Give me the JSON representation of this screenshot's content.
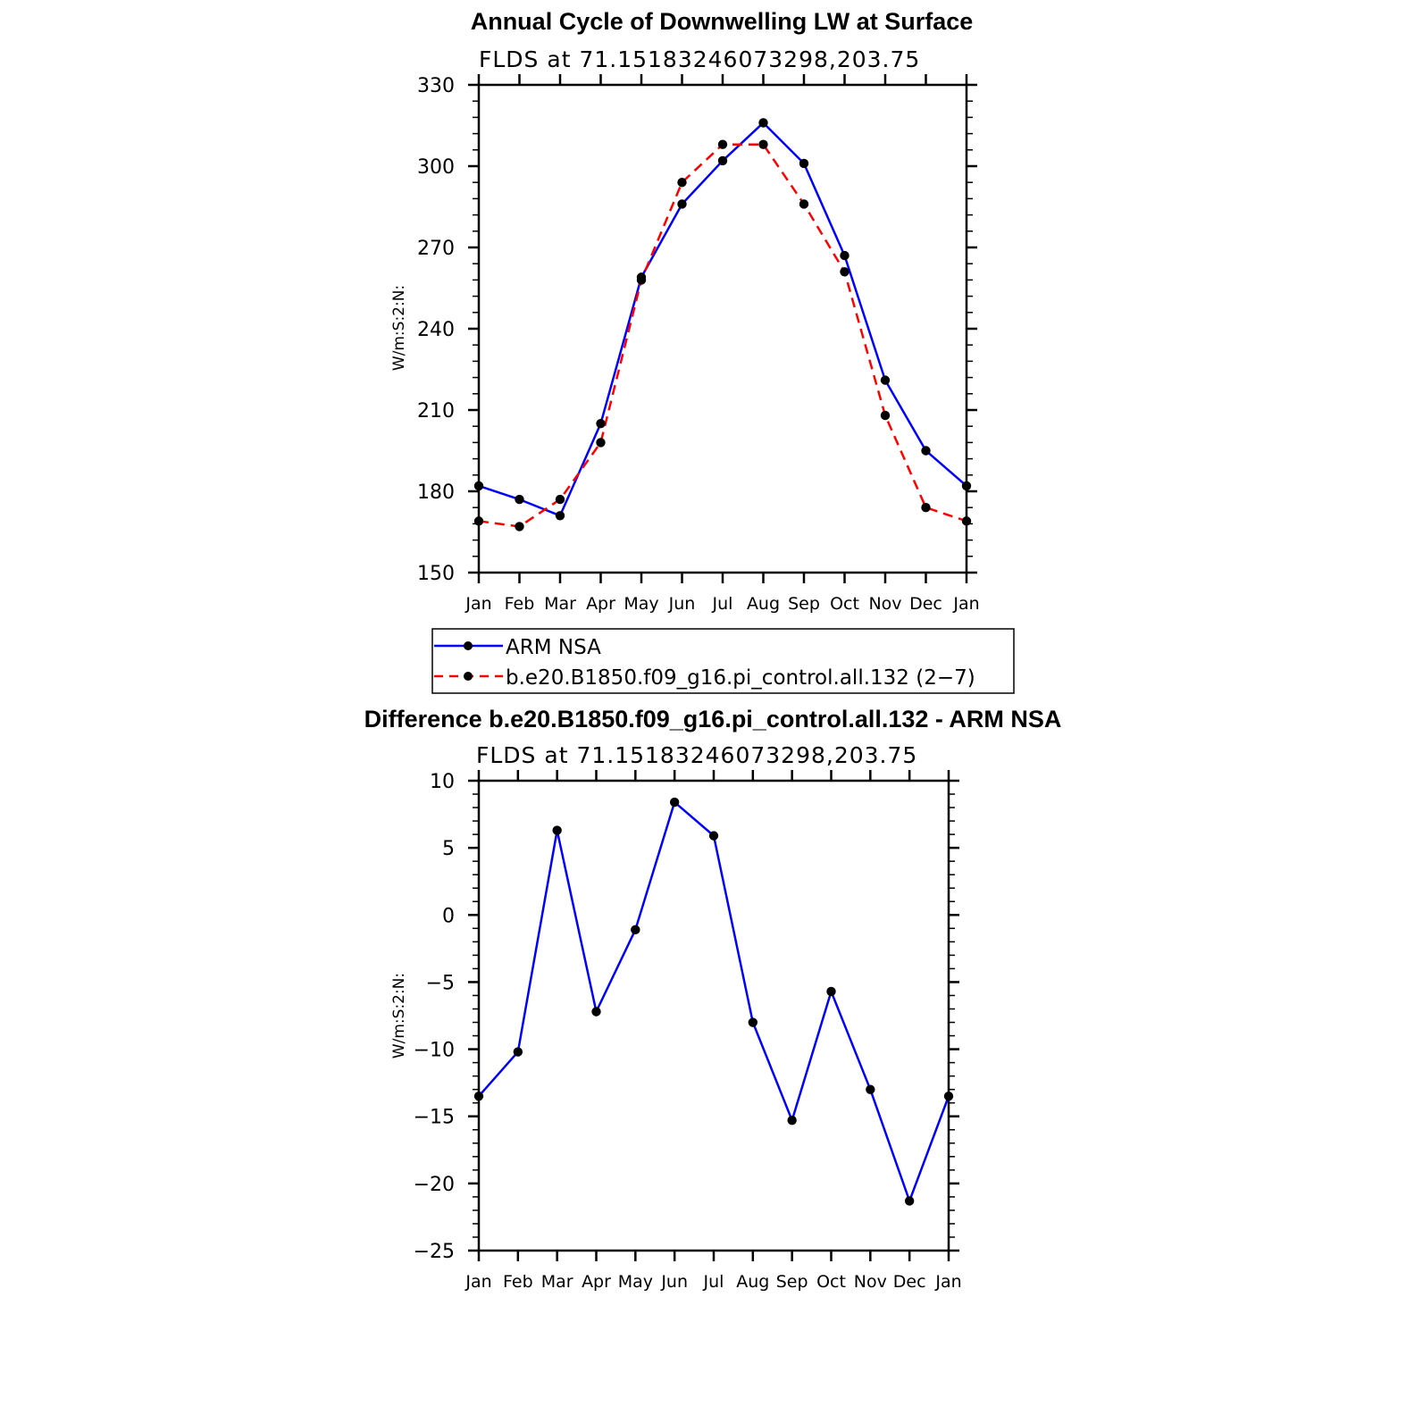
{
  "chart_data": [
    {
      "type": "line",
      "title": "Annual Cycle of Downwelling LW at Surface",
      "subtitle": "FLDS at 71.15183246073298,203.75",
      "xlabel": "",
      "ylabel": "W/m:S:2:N:",
      "categories": [
        "Jan",
        "Feb",
        "Mar",
        "Apr",
        "May",
        "Jun",
        "Jul",
        "Aug",
        "Sep",
        "Oct",
        "Nov",
        "Dec",
        "Jan"
      ],
      "ylim": [
        150,
        330
      ],
      "yticks": [
        150,
        180,
        210,
        240,
        270,
        300,
        330
      ],
      "series": [
        {
          "name": "ARM NSA",
          "color": "#0000ff",
          "dash": "solid",
          "values": [
            182,
            177,
            171,
            205,
            259,
            286,
            302,
            316,
            301,
            267,
            221,
            195,
            182
          ]
        },
        {
          "name": "b.e20.B1850.f09_g16.pi_control.all.132 (2−7)",
          "color": "#ff0000",
          "dash": "dashed",
          "values": [
            169,
            167,
            177,
            198,
            258,
            294,
            308,
            308,
            286,
            261,
            208,
            174,
            169
          ]
        }
      ],
      "legend": "below"
    },
    {
      "type": "line",
      "title": "Difference b.e20.B1850.f09_g16.pi_control.all.132 - ARM NSA",
      "subtitle": "FLDS at 71.15183246073298,203.75",
      "xlabel": "",
      "ylabel": "W/m:S:2:N:",
      "categories": [
        "Jan",
        "Feb",
        "Mar",
        "Apr",
        "May",
        "Jun",
        "Jul",
        "Aug",
        "Sep",
        "Oct",
        "Nov",
        "Dec",
        "Jan"
      ],
      "ylim": [
        -25,
        10
      ],
      "yticks": [
        -25,
        -20,
        -15,
        -10,
        -5,
        0,
        5,
        10
      ],
      "ytick_labels": [
        "−25",
        "−20",
        "−15",
        "−10",
        "−5",
        "0",
        "5",
        "10"
      ],
      "series": [
        {
          "name": "difference",
          "color": "#0000ff",
          "dash": "solid",
          "values": [
            -13.5,
            -10.2,
            6.3,
            -7.2,
            -1.1,
            8.4,
            5.9,
            -8.0,
            -15.3,
            -5.7,
            -13.0,
            -21.3,
            -13.5
          ]
        }
      ]
    }
  ]
}
